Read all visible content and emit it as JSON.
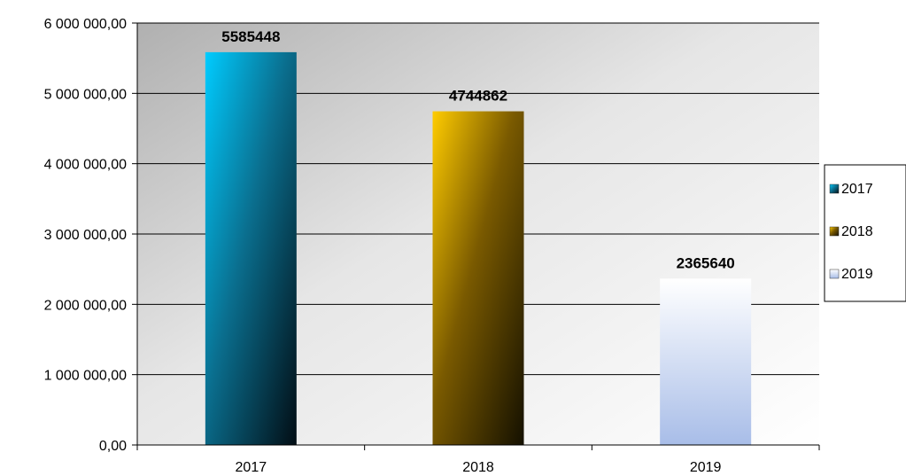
{
  "chart_data": {
    "type": "bar",
    "categories": [
      "2017",
      "2018",
      "2019"
    ],
    "series": [
      {
        "name": "2017",
        "category": "2017",
        "value": 5585448,
        "label": "5585448",
        "color": "#00c8ff"
      },
      {
        "name": "2018",
        "category": "2018",
        "value": 4744862,
        "label": "4744862",
        "color": "#ffcc00"
      },
      {
        "name": "2019",
        "category": "2019",
        "value": 2365640,
        "label": "2365640",
        "color": "#a8bde8"
      }
    ],
    "title": "",
    "xlabel": "",
    "ylabel": "",
    "ylim": [
      0,
      6000000
    ],
    "yticks": [
      0,
      1000000,
      2000000,
      3000000,
      4000000,
      5000000,
      6000000
    ],
    "ytick_labels": [
      "0,00",
      "1 000 000,00",
      "2 000 000,00",
      "3 000 000,00",
      "4 000 000,00",
      "5 000 000,00",
      "6 000 000,00"
    ],
    "grid": true,
    "legend": {
      "position": "right",
      "entries": [
        "2017",
        "2018",
        "2019"
      ]
    }
  }
}
